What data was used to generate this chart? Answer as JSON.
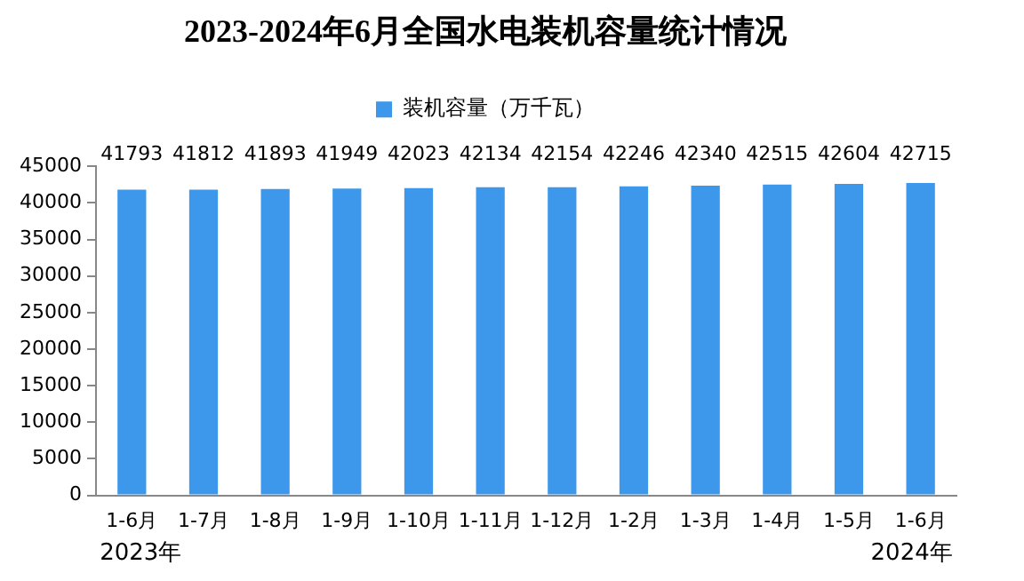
{
  "chart_data": {
    "type": "bar",
    "title": "2023-2024年6月全国水电装机容量统计情况",
    "categories": [
      "1-6月",
      "1-7月",
      "1-8月",
      "1-9月",
      "1-10月",
      "1-11月",
      "1-12月",
      "1-2月",
      "1-3月",
      "1-4月",
      "1-5月",
      "1-6月"
    ],
    "series": [
      {
        "name": "装机容量（万千瓦）",
        "color": "#3d97ea",
        "values": [
          41793,
          41812,
          41893,
          41949,
          42023,
          42134,
          42154,
          42246,
          42340,
          42515,
          42604,
          42715
        ]
      }
    ],
    "ylim": [
      0,
      45000
    ],
    "yticks": [
      0,
      5000,
      10000,
      15000,
      20000,
      25000,
      30000,
      35000,
      40000,
      45000
    ],
    "grid": false,
    "legend": "top",
    "data_labels": true,
    "annotations": [
      "2023年",
      "2024年"
    ]
  }
}
